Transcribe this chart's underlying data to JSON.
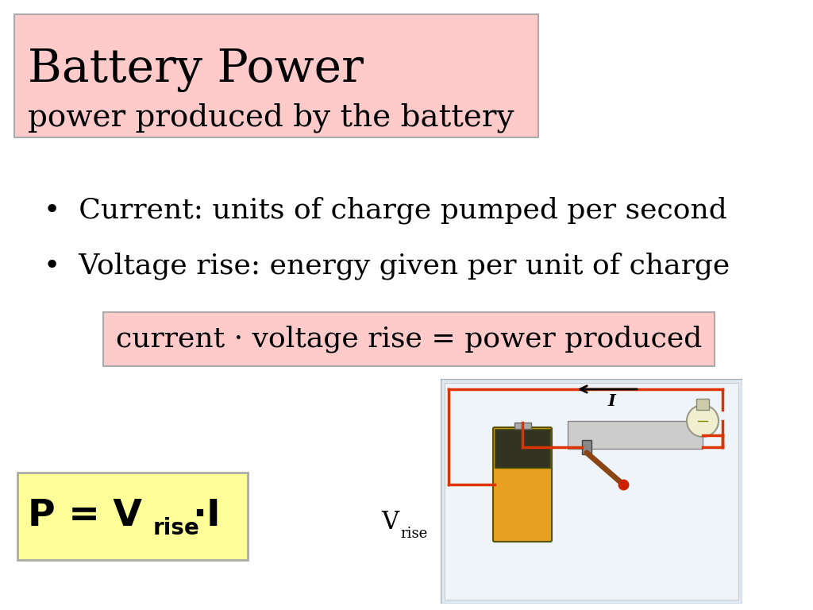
{
  "background_color": "#ffffff",
  "title_text": "Battery Power",
  "subtitle_text": "power produced by the battery",
  "title_box_color": "#ffcaca",
  "bullet1": "Current: units of charge pumped per second",
  "bullet2": "Voltage rise: energy given per unit of charge",
  "formula_box_text": "current · voltage rise = power produced",
  "formula_box_color": "#ffcaca",
  "equation_box_color": "#ffff99",
  "vrise_label": "V",
  "vrise_sub": "rise",
  "current_label": "I",
  "title_fontsize": 42,
  "subtitle_fontsize": 28,
  "bullet_fontsize": 26,
  "formula_fontsize": 26,
  "eq_fontsize": 34,
  "eq_sub_fontsize": 20
}
